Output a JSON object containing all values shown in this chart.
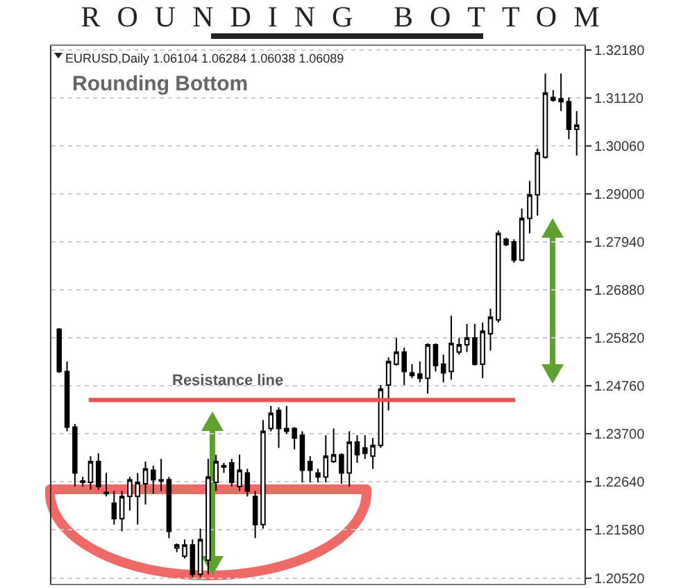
{
  "chart_data": {
    "type": "candlestick",
    "title": "ROUNDING BOTTOM",
    "annotations": [
      "EURUSD,Daily 1.06104 1.06284 1.06038 1.06089",
      "Rounding Bottom"
    ],
    "color": "#000000",
    "categories": [
      null,
      null,
      null,
      null,
      null,
      null,
      null,
      null,
      null,
      null,
      null,
      null,
      null,
      null,
      null,
      null,
      null,
      null,
      null,
      null,
      null,
      null,
      null,
      null,
      null,
      null,
      null,
      null,
      null,
      null,
      null,
      null,
      null,
      null,
      null,
      null,
      null,
      null,
      null,
      null,
      null,
      null,
      null,
      null,
      null,
      null,
      null,
      null,
      null,
      null,
      null,
      null,
      null,
      null,
      null,
      null,
      null,
      null,
      null,
      null,
      null,
      null,
      null,
      null,
      null,
      null,
      null
    ],
    "ohlc": [
      [
        1.2601,
        1.2604,
        1.2505,
        1.2508
      ],
      [
        1.2508,
        1.253,
        1.2376,
        1.2385
      ],
      [
        1.2385,
        1.2392,
        1.2254,
        1.2284
      ],
      [
        1.2263,
        1.2275,
        1.2254,
        1.2266
      ],
      [
        1.2263,
        1.2321,
        1.2247,
        1.2309
      ],
      [
        1.2309,
        1.2327,
        1.2247,
        1.2254
      ],
      [
        1.2238,
        1.2284,
        1.2232,
        1.2241
      ],
      [
        1.2217,
        1.2244,
        1.217,
        1.2183
      ],
      [
        1.2183,
        1.2244,
        1.2155,
        1.2232
      ],
      [
        1.2232,
        1.2275,
        1.2201,
        1.2269
      ],
      [
        1.2232,
        1.2284,
        1.217,
        1.2263
      ],
      [
        1.226,
        1.2309,
        1.2214,
        1.2293
      ],
      [
        1.229,
        1.23,
        1.2238,
        1.2269
      ],
      [
        1.2269,
        1.2315,
        1.2244,
        1.2266
      ],
      [
        1.2269,
        1.2275,
        1.214,
        1.2155
      ],
      [
        1.2118,
        1.2128,
        1.2109,
        1.2125
      ],
      [
        1.21,
        1.2137,
        1.2095,
        1.2125
      ],
      [
        1.2125,
        1.2137,
        1.2054,
        1.206
      ],
      [
        1.206,
        1.2161,
        1.2054,
        1.2137
      ],
      [
        1.2091,
        1.2315,
        1.206,
        1.2275
      ],
      [
        1.2263,
        1.2324,
        1.2244,
        1.2309
      ],
      [
        1.2297,
        1.2306,
        1.2284,
        1.23
      ],
      [
        1.2306,
        1.2315,
        1.2254,
        1.2263
      ],
      [
        1.2254,
        1.2324,
        1.2244,
        1.229
      ],
      [
        1.2284,
        1.2293,
        1.2232,
        1.2244
      ],
      [
        1.2232,
        1.2244,
        1.214,
        1.217
      ],
      [
        1.217,
        1.2401,
        1.2161,
        1.2376
      ],
      [
        1.2382,
        1.2432,
        1.2376,
        1.2416
      ],
      [
        1.2422,
        1.2429,
        1.2339,
        1.2382
      ],
      [
        1.2376,
        1.2432,
        1.237,
        1.2382
      ],
      [
        1.2382,
        1.2385,
        1.2336,
        1.2361
      ],
      [
        1.2367,
        1.2376,
        1.2263,
        1.229
      ],
      [
        1.2309,
        1.2321,
        1.2263,
        1.229
      ],
      [
        1.2284,
        1.2293,
        1.2263,
        1.2275
      ],
      [
        1.2275,
        1.2367,
        1.2263,
        1.2321
      ],
      [
        1.2309,
        1.2382,
        1.2306,
        1.2324
      ],
      [
        1.2324,
        1.2327,
        1.226,
        1.2284
      ],
      [
        1.2284,
        1.2376,
        1.2254,
        1.2352
      ],
      [
        1.2352,
        1.2367,
        1.2306,
        1.2324
      ],
      [
        1.2339,
        1.2367,
        1.2315,
        1.2327
      ],
      [
        1.2321,
        1.2361,
        1.2293,
        1.2345
      ],
      [
        1.2345,
        1.2478,
        1.2339,
        1.2469
      ],
      [
        1.2478,
        1.2539,
        1.2422,
        1.253
      ],
      [
        1.2524,
        1.2582,
        1.2521,
        1.2551
      ],
      [
        1.2551,
        1.2561,
        1.2478,
        1.2508
      ],
      [
        1.2505,
        1.2524,
        1.2493,
        1.2499
      ],
      [
        1.2502,
        1.253,
        1.2484,
        1.2493
      ],
      [
        1.2493,
        1.257,
        1.2459,
        1.2567
      ],
      [
        1.2567,
        1.257,
        1.2508,
        1.2521
      ],
      [
        1.2524,
        1.2545,
        1.2484,
        1.2505
      ],
      [
        1.2508,
        1.2631,
        1.249,
        1.257
      ],
      [
        1.2551,
        1.2582,
        1.2545,
        1.2567
      ],
      [
        1.2567,
        1.2613,
        1.2551,
        1.2582
      ],
      [
        1.2582,
        1.2613,
        1.2521,
        1.2524
      ],
      [
        1.2524,
        1.2616,
        1.2493,
        1.2597
      ],
      [
        1.2591,
        1.2647,
        1.2554,
        1.2628
      ],
      [
        1.2622,
        1.2819,
        1.2616,
        1.2813
      ],
      [
        1.28,
        1.2803,
        1.2785,
        1.2788
      ],
      [
        1.2794,
        1.28,
        1.2748,
        1.2754
      ],
      [
        1.2754,
        1.2868,
        1.2751,
        1.2846
      ],
      [
        1.2846,
        1.2929,
        1.2813,
        1.2898
      ],
      [
        1.2898,
        1.3,
        1.2852,
        1.2991
      ],
      [
        1.2981,
        1.3166,
        1.2978,
        1.3123
      ],
      [
        1.3113,
        1.3129,
        1.3104,
        1.3107
      ],
      [
        1.311,
        1.3166,
        1.3083,
        1.3104
      ],
      [
        1.3104,
        1.3113,
        1.3021,
        1.3043
      ],
      [
        1.3043,
        1.3083,
        1.2985,
        1.3052
      ]
    ],
    "ylim": [
      1.2039,
      1.3227
    ],
    "yticks": [
      {
        "value": 1.2052,
        "label": "1.20520"
      },
      {
        "value": 1.2158,
        "label": "1.21580"
      },
      {
        "value": 1.2264,
        "label": "1.22640"
      },
      {
        "value": 1.237,
        "label": "1.23700"
      },
      {
        "value": 1.2476,
        "label": "1.24760"
      },
      {
        "value": 1.2582,
        "label": "1.25820"
      },
      {
        "value": 1.2688,
        "label": "1.26880"
      },
      {
        "value": 1.2794,
        "label": "1.27940"
      },
      {
        "value": 1.29,
        "label": "1.29000"
      },
      {
        "value": 1.3006,
        "label": "1.30060"
      },
      {
        "value": 1.3112,
        "label": "1.31120"
      },
      {
        "value": 1.3218,
        "label": "1.32180"
      }
    ],
    "ref_lines": [
      {
        "axis": "y",
        "value": 1.2445,
        "label": "Resistance line",
        "color": "#e8534f"
      }
    ],
    "grid": "y",
    "tick_labels": "y"
  }
}
